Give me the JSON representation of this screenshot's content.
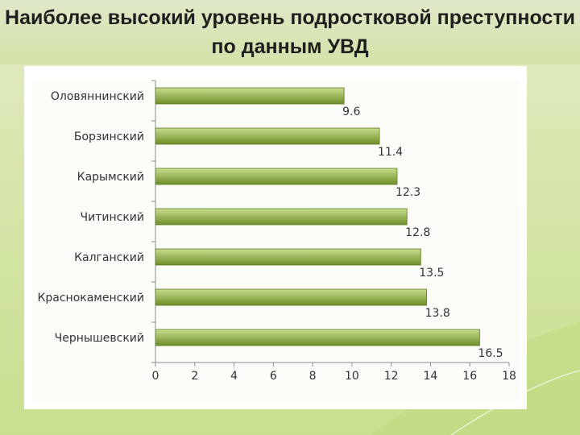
{
  "title": {
    "line1": "Наиболее высокий уровень подростковой преступности",
    "line2": "по данным УВД"
  },
  "colors": {
    "bar_top": "#c8dc8e",
    "bar_bottom": "#6f8f28",
    "bar_stroke": "#5e7a22",
    "axis": "#8c8c8c",
    "text": "#333333"
  },
  "chart_data": {
    "type": "bar",
    "orientation": "horizontal",
    "categories": [
      "Оловяннинский",
      "Борзинский",
      "Карымский",
      "Читинский",
      "Калганский",
      "Краснокаменский",
      "Чернышевский"
    ],
    "values": [
      9.6,
      11.4,
      12.3,
      12.8,
      13.5,
      13.8,
      16.5
    ],
    "data_labels": [
      "9.6",
      "11.4",
      "12.3",
      "12.8",
      "13.5",
      "13.8",
      "16.5"
    ],
    "xlim": [
      0,
      18
    ],
    "x_ticks": [
      0,
      2,
      4,
      6,
      8,
      10,
      12,
      14,
      16,
      18
    ],
    "x_tick_labels": [
      "0",
      "2",
      "4",
      "6",
      "8",
      "10",
      "12",
      "14",
      "16",
      "18"
    ],
    "grid": false,
    "legend": false
  }
}
